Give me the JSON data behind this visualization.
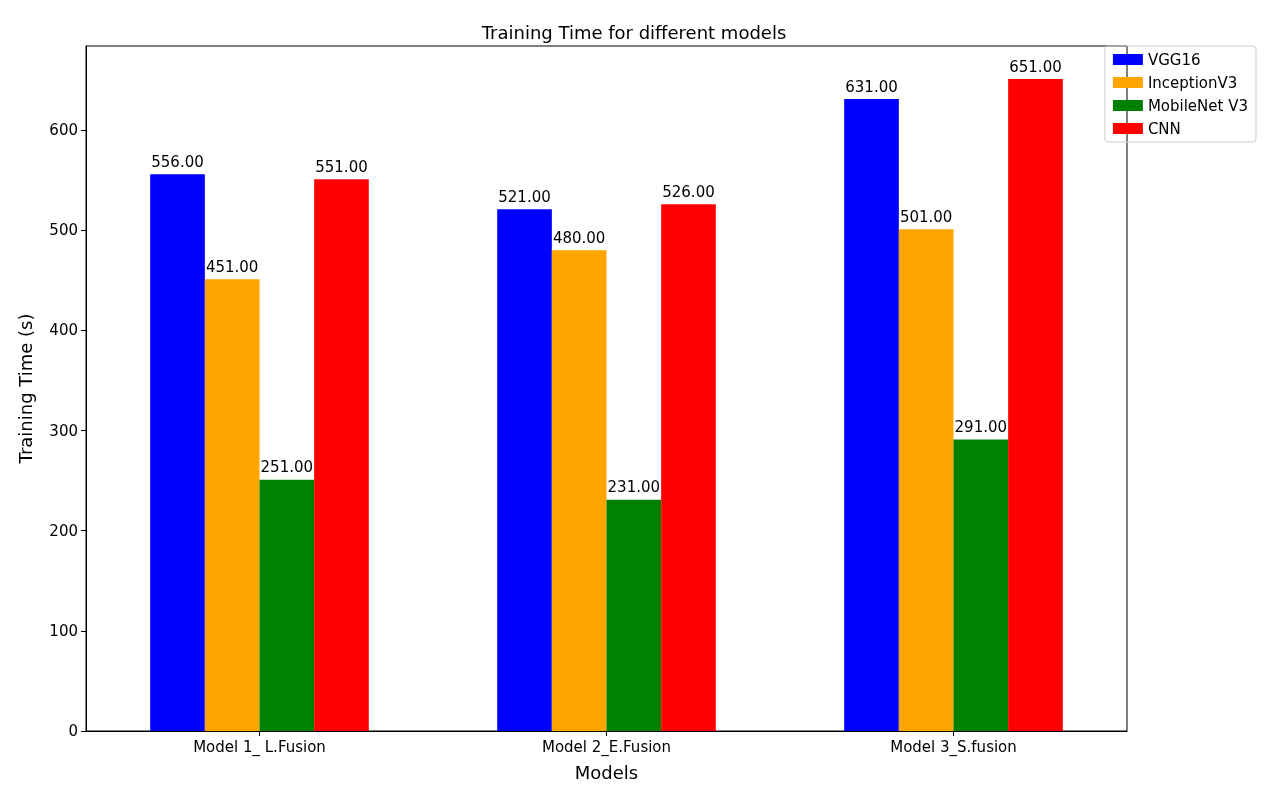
{
  "chart_data": {
    "type": "bar",
    "title": "Training Time for different models",
    "xlabel": "Models",
    "ylabel": "Training Time (s)",
    "categories": [
      "Model 1_ L.Fusion",
      "Model 2_E.Fusion",
      "Model 3_S.fusion"
    ],
    "series": [
      {
        "name": "VGG16",
        "color": "#0000ff",
        "values": [
          556,
          521,
          631
        ],
        "value_labels": [
          "556.00",
          "521.00",
          "631.00"
        ]
      },
      {
        "name": "InceptionV3",
        "color": "#ffa500",
        "values": [
          451,
          480,
          501
        ],
        "value_labels": [
          "451.00",
          "480.00",
          "501.00"
        ]
      },
      {
        "name": "MobileNet V3",
        "color": "#008000",
        "values": [
          251,
          231,
          291
        ],
        "value_labels": [
          "251.00",
          "231.00",
          "291.00"
        ]
      },
      {
        "name": "CNN",
        "color": "#ff0000",
        "values": [
          551,
          526,
          651
        ],
        "value_labels": [
          "551.00",
          "526.00",
          "651.00"
        ]
      }
    ],
    "ylim": [
      0,
      684
    ],
    "yticks": [
      0,
      100,
      200,
      300,
      400,
      500,
      600
    ],
    "grid": false,
    "legend": "top right"
  }
}
